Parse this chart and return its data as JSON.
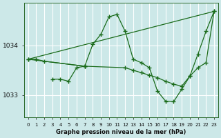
{
  "title": "Graphe pression niveau de la mer (hPa)",
  "bg_color": "#cce8e8",
  "grid_color": "#ffffff",
  "line_color": "#1a6b1a",
  "xlim": [
    -0.5,
    23.5
  ],
  "ylim": [
    1032.55,
    1034.85
  ],
  "yticks": [
    1033,
    1034
  ],
  "xticks": [
    0,
    1,
    2,
    3,
    4,
    5,
    6,
    7,
    8,
    9,
    10,
    11,
    12,
    13,
    14,
    15,
    16,
    17,
    18,
    19,
    20,
    21,
    22,
    23
  ],
  "lines": [
    {
      "x": [
        0,
        23
      ],
      "y": [
        1033.72,
        1034.68
      ],
      "marker": false
    },
    {
      "x": [
        0,
        1,
        2,
        7,
        8,
        9,
        10,
        11,
        12,
        13,
        14,
        15,
        16,
        17,
        18,
        19,
        20,
        21,
        22,
        23
      ],
      "y": [
        1033.72,
        1033.72,
        1033.68,
        1033.58,
        1034.02,
        1034.22,
        1034.57,
        1034.62,
        1034.28,
        1033.72,
        1033.65,
        1033.55,
        1033.08,
        1032.88,
        1032.87,
        1033.12,
        1033.38,
        1033.82,
        1034.28,
        1034.68
      ],
      "marker": true
    },
    {
      "x": [
        3,
        4,
        5,
        6,
        7
      ],
      "y": [
        1033.32,
        1033.32,
        1033.28,
        1033.55,
        1033.58
      ],
      "marker": true
    },
    {
      "x": [
        0,
        7,
        12,
        13,
        14,
        15,
        16,
        17,
        18,
        19,
        20,
        21,
        22,
        23
      ],
      "y": [
        1033.72,
        1033.58,
        1033.55,
        1033.5,
        1033.45,
        1033.4,
        1033.35,
        1033.28,
        1033.22,
        1033.18,
        1033.38,
        1033.55,
        1033.65,
        1034.68
      ],
      "marker": true
    }
  ]
}
